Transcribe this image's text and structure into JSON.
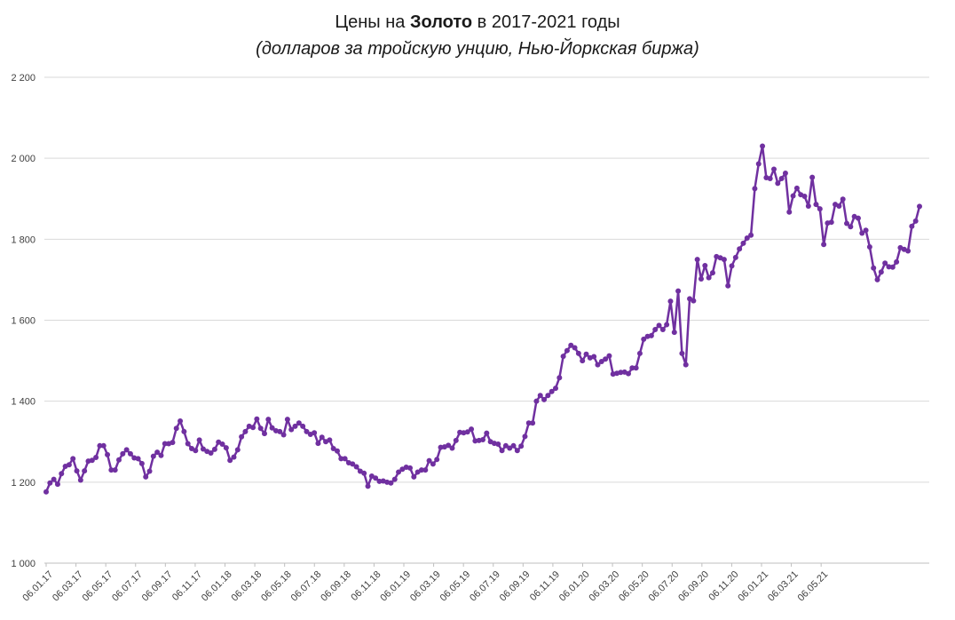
{
  "title": {
    "prefix": "Цены на ",
    "bold": "Золото",
    "suffix": " в 2017-2021 годы",
    "subtitle": "(долларов за тройскую унцию, Нью-Йоркская биржа)"
  },
  "chart_data": {
    "type": "line",
    "title": "Цены на Золото в 2017-2021 годы",
    "subtitle": "(долларов за тройскую унцию, Нью-Йоркская биржа)",
    "xlabel": "",
    "ylabel": "",
    "ylim": [
      1000,
      2200
    ],
    "yticks": [
      1000,
      1200,
      1400,
      1600,
      1800,
      2000,
      2200
    ],
    "ytick_labels": [
      "1 000",
      "1 200",
      "1 400",
      "1 600",
      "1 800",
      "2 000",
      "2 200"
    ],
    "xtick_labels": [
      "06.01.17",
      "06.03.17",
      "06.05.17",
      "06.07.17",
      "06.09.17",
      "06.11.17",
      "06.01.18",
      "06.03.18",
      "06.05.18",
      "06.07.18",
      "06.09.18",
      "06.11.18",
      "06.01.19",
      "06.03.19",
      "06.05.19",
      "06.07.19",
      "06.09.19",
      "06.11.19",
      "06.01.20",
      "06.03.20",
      "06.05.20",
      "06.07.20",
      "06.09.20",
      "06.11.20",
      "06.01.21",
      "06.03.21",
      "06.05.21"
    ],
    "grid": "horizontal",
    "legend": "none",
    "line_color": "#7030A0",
    "series": [
      {
        "values": [
          1176,
          1198,
          1207,
          1195,
          1221,
          1239,
          1243,
          1258,
          1228,
          1205,
          1228,
          1252,
          1254,
          1261,
          1290,
          1290,
          1268,
          1230,
          1230,
          1255,
          1270,
          1280,
          1270,
          1260,
          1258,
          1246,
          1213,
          1227,
          1264,
          1274,
          1266,
          1295,
          1295,
          1298,
          1333,
          1351,
          1325,
          1295,
          1283,
          1278,
          1304,
          1282,
          1276,
          1272,
          1281,
          1299,
          1294,
          1285,
          1254,
          1262,
          1280,
          1312,
          1325,
          1338,
          1335,
          1356,
          1333,
          1320,
          1355,
          1334,
          1327,
          1325,
          1317,
          1355,
          1330,
          1338,
          1346,
          1338,
          1325,
          1318,
          1322,
          1296,
          1311,
          1300,
          1304,
          1283,
          1277,
          1258,
          1258,
          1248,
          1245,
          1238,
          1227,
          1222,
          1190,
          1215,
          1210,
          1202,
          1203,
          1200,
          1198,
          1207,
          1225,
          1232,
          1237,
          1235,
          1213,
          1225,
          1230,
          1230,
          1253,
          1245,
          1256,
          1286,
          1287,
          1291,
          1284,
          1303,
          1323,
          1322,
          1324,
          1331,
          1302,
          1303,
          1305,
          1321,
          1300,
          1296,
          1294,
          1278,
          1290,
          1284,
          1290,
          1278,
          1289,
          1313,
          1346,
          1346,
          1400,
          1414,
          1404,
          1414,
          1424,
          1432,
          1458,
          1511,
          1525,
          1538,
          1532,
          1518,
          1500,
          1516,
          1507,
          1510,
          1490,
          1498,
          1504,
          1512,
          1467,
          1469,
          1471,
          1472,
          1468,
          1482,
          1482,
          1518,
          1553,
          1560,
          1562,
          1577,
          1587,
          1577,
          1589,
          1647,
          1570,
          1672,
          1518,
          1490,
          1653,
          1648,
          1750,
          1702,
          1735,
          1705,
          1717,
          1757,
          1754,
          1750,
          1685,
          1734,
          1755,
          1776,
          1790,
          1803,
          1810,
          1925,
          1986,
          2030,
          1952,
          1950,
          1973,
          1938,
          1950,
          1963,
          1867,
          1907,
          1926,
          1910,
          1906,
          1882,
          1953,
          1886,
          1875,
          1787,
          1840,
          1842,
          1886,
          1882,
          1899,
          1839,
          1831,
          1856,
          1852,
          1815,
          1822,
          1781,
          1729,
          1700,
          1719,
          1741,
          1732,
          1731,
          1744,
          1779,
          1775,
          1771,
          1832,
          1845,
          1881
        ]
      }
    ]
  }
}
